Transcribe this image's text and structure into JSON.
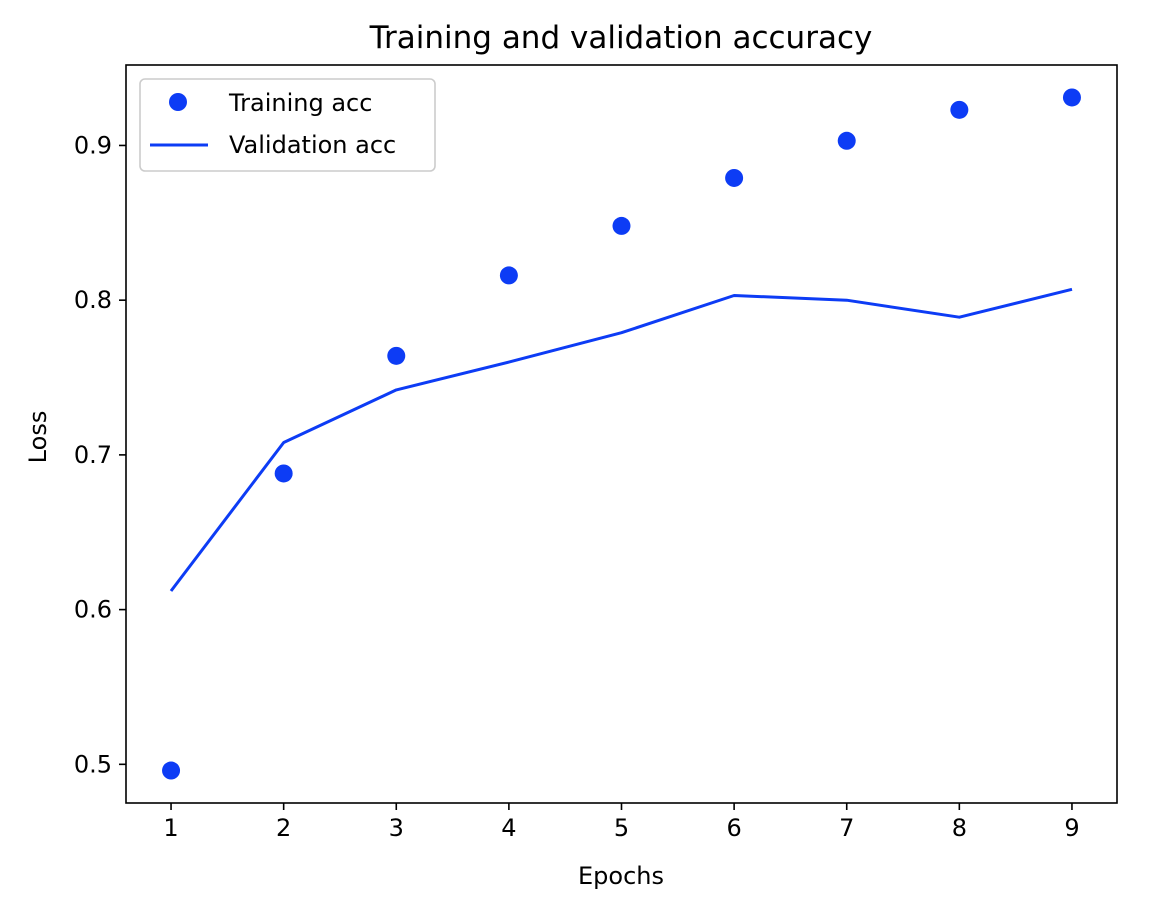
{
  "colors": {
    "series": "#0d3cf5",
    "axis": "#000000",
    "background": "#ffffff",
    "legend_border": "#cccccc"
  },
  "chart_data": {
    "type": "line",
    "title": "Training and validation accuracy",
    "xlabel": "Epochs",
    "ylabel": "Loss",
    "xlim": [
      0.6,
      9.4
    ],
    "ylim": [
      0.475,
      0.952
    ],
    "xticks": [
      1,
      2,
      3,
      4,
      5,
      6,
      7,
      8,
      9
    ],
    "xtick_labels": [
      "1",
      "2",
      "3",
      "4",
      "5",
      "6",
      "7",
      "8",
      "9"
    ],
    "yticks": [
      0.5,
      0.6,
      0.7,
      0.8,
      0.9
    ],
    "ytick_labels": [
      "0.5",
      "0.6",
      "0.7",
      "0.8",
      "0.9"
    ],
    "grid": false,
    "legend_position": "top-left",
    "x": [
      1,
      2,
      3,
      4,
      5,
      6,
      7,
      8,
      9
    ],
    "series": [
      {
        "name": "Training acc",
        "style": "markers",
        "values": [
          0.496,
          0.688,
          0.764,
          0.816,
          0.848,
          0.879,
          0.903,
          0.923,
          0.931
        ]
      },
      {
        "name": "Validation acc",
        "style": "line",
        "values": [
          0.612,
          0.708,
          0.742,
          0.76,
          0.779,
          0.803,
          0.8,
          0.789,
          0.807
        ]
      }
    ]
  }
}
